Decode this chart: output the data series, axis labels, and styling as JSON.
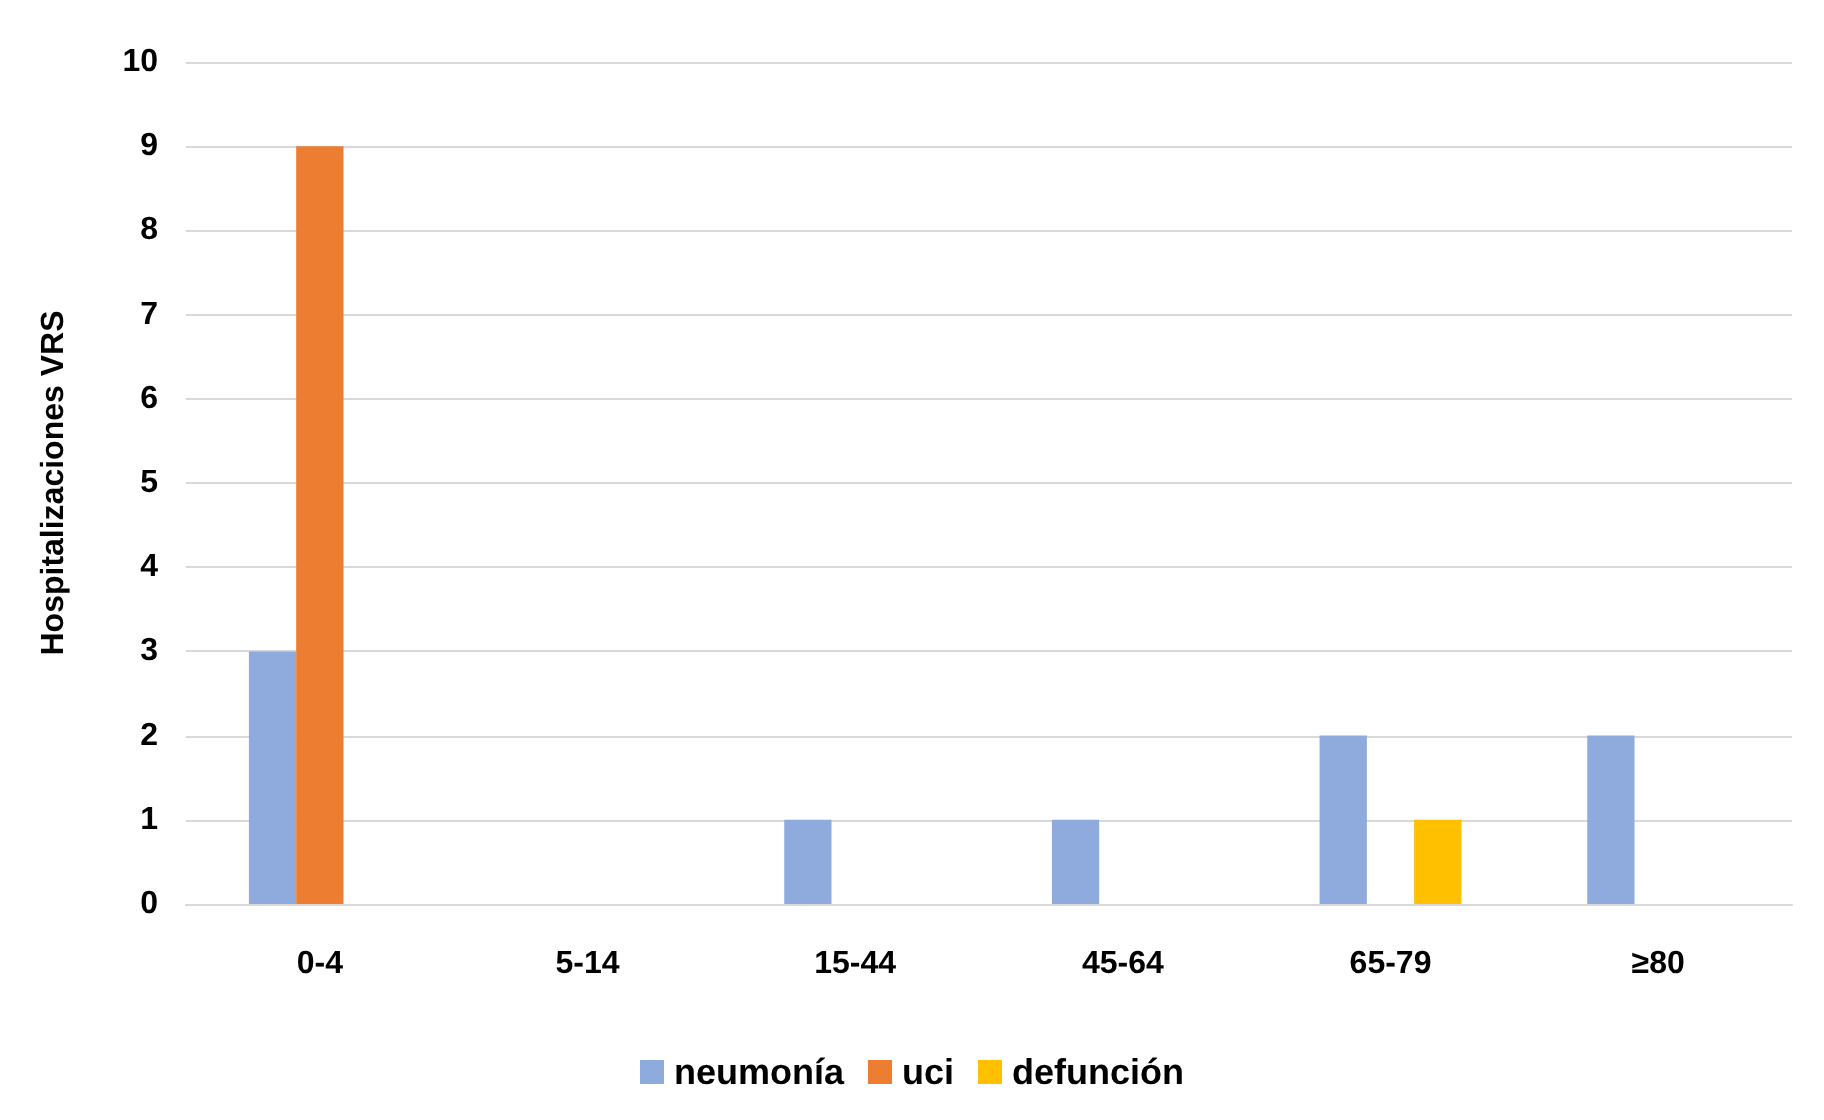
{
  "chart_data": {
    "type": "bar",
    "ylabel": "Hospitalizaciones VRS",
    "categories": [
      "0-4",
      "5-14",
      "15-44",
      "45-64",
      "65-79",
      "≥80"
    ],
    "series": [
      {
        "name": "neumonía",
        "color": "#8faadc",
        "values": [
          3,
          0,
          1,
          1,
          2,
          2
        ]
      },
      {
        "name": "uci",
        "color": "#ed7d31",
        "values": [
          9,
          0,
          0,
          0,
          0,
          0
        ]
      },
      {
        "name": "defunción",
        "color": "#ffc000",
        "values": [
          0,
          0,
          0,
          0,
          1,
          0
        ]
      }
    ],
    "ylim": [
      0,
      10
    ],
    "yticks": [
      0,
      1,
      2,
      3,
      4,
      5,
      6,
      7,
      8,
      9,
      10
    ],
    "grid": "y",
    "legend": "bottom"
  }
}
